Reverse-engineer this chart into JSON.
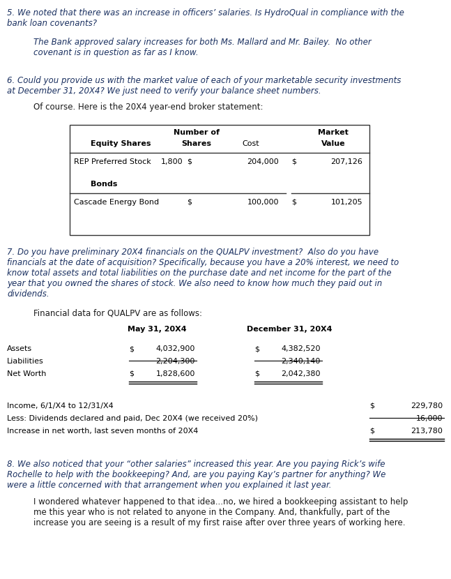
{
  "bg_color": "#ffffff",
  "q_color": "#1a3060",
  "plain_color": "#1a1a1a",
  "q5": "5. We noted that there was an increase in officers’ salaries. Is HydroQual in compliance with the\nbank loan covenants?",
  "a5": "The Bank approved salary increases for both Ms. Mallard and Mr. Bailey.  No other\ncovenant is in question as far as I know.",
  "q6": "6. Could you provide us with the market value of each of your marketable security investments\nat December 31, 20X4? We just need to verify your balance sheet numbers.",
  "a6": "Of course. Here is the 20X4 year-end broker statement:",
  "q7": "7. Do you have preliminary 20X4 financials on the QUALPV investment?  Also do you have\nfinancials at the date of acquisition? Specifically, because you have a 20% interest, we need to\nknow total assets and total liabilities on the purchase date and net income for the part of the\nyear that you owned the shares of stock. We also need to know how much they paid out in\ndividends.",
  "a7": "Financial data for QUALPV are as follows:",
  "q8": "8. We also noticed that your “other salaries” increased this year. Are you paying Rick’s wife\nRochelle to help with the bookkeeping? And, are you paying Kay’s partner for anything? We\nwere a little concerned with that arrangement when you explained it last year.",
  "a8": "I wondered whatever happened to that idea...no, we hired a bookkeeping assistant to help\nme this year who is not related to anyone in the Company. And, thankfully, part of the\nincrease you are seeing is a result of my first raise after over three years of working here."
}
